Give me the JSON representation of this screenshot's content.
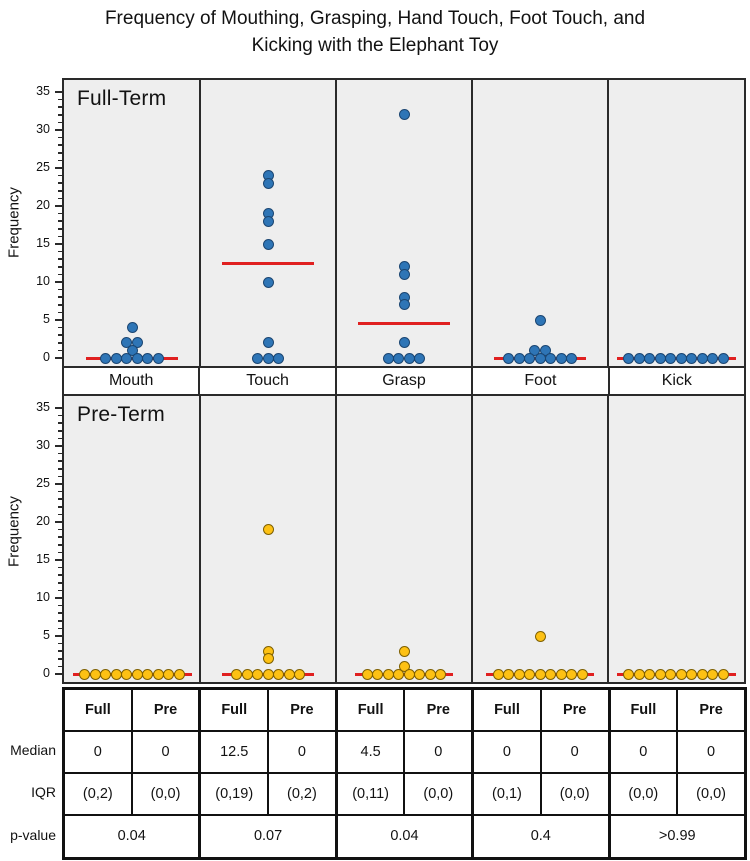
{
  "title": {
    "line1": "Frequency of Mouthing, Grasping, Hand Touch, Foot Touch, and",
    "line2": "Kicking with the Elephant Toy"
  },
  "y_axis": {
    "label": "Frequency",
    "min": 0,
    "max": 35,
    "major_ticks": [
      0,
      5,
      10,
      15,
      20,
      25,
      30,
      35
    ],
    "minor_tick_step": 1
  },
  "categories": [
    "Mouth",
    "Touch",
    "Grasp",
    "Foot",
    "Kick"
  ],
  "colors": {
    "full_term_dot": "#2e75b6",
    "full_term_dot_border": "#1b4672",
    "pre_term_dot": "#fdc114",
    "pre_term_dot_border": "#7f6000",
    "median_line": "#e02020",
    "panel_background": "#eeeeee"
  },
  "chart_data": [
    {
      "type": "scatter",
      "panel": "Full-Term",
      "ylabel": "Frequency",
      "ylim": [
        0,
        35
      ],
      "categories": [
        "Mouth",
        "Touch",
        "Grasp",
        "Foot",
        "Kick"
      ],
      "series": [
        {
          "category": "Mouth",
          "values": [
            4,
            2,
            2,
            1,
            0,
            0,
            0,
            0,
            0,
            0
          ],
          "median": 0
        },
        {
          "category": "Touch",
          "values": [
            24,
            23,
            19,
            18,
            15,
            10,
            2,
            0,
            0,
            0
          ],
          "median": 12.5
        },
        {
          "category": "Grasp",
          "values": [
            32,
            12,
            11,
            8,
            7,
            2,
            0,
            0,
            0,
            0
          ],
          "median": 4.5
        },
        {
          "category": "Foot",
          "values": [
            5,
            1,
            1,
            0,
            0,
            0,
            0,
            0,
            0,
            0
          ],
          "median": 0
        },
        {
          "category": "Kick",
          "values": [
            0,
            0,
            0,
            0,
            0,
            0,
            0,
            0,
            0,
            0
          ],
          "median": 0
        }
      ]
    },
    {
      "type": "scatter",
      "panel": "Pre-Term",
      "ylabel": "Frequency",
      "ylim": [
        0,
        35
      ],
      "categories": [
        "Mouth",
        "Touch",
        "Grasp",
        "Foot",
        "Kick"
      ],
      "series": [
        {
          "category": "Mouth",
          "values": [
            0,
            0,
            0,
            0,
            0,
            0,
            0,
            0,
            0,
            0
          ],
          "median": 0
        },
        {
          "category": "Touch",
          "values": [
            19,
            3,
            2,
            0,
            0,
            0,
            0,
            0,
            0,
            0
          ],
          "median": 0
        },
        {
          "category": "Grasp",
          "values": [
            3,
            1,
            0,
            0,
            0,
            0,
            0,
            0,
            0,
            0
          ],
          "median": 0
        },
        {
          "category": "Foot",
          "values": [
            5,
            0,
            0,
            0,
            0,
            0,
            0,
            0,
            0,
            0
          ],
          "median": 0
        },
        {
          "category": "Kick",
          "values": [
            0,
            0,
            0,
            0,
            0,
            0,
            0,
            0,
            0,
            0
          ],
          "median": 0
        }
      ]
    }
  ],
  "panels": [
    {
      "label": "Full-Term"
    },
    {
      "label": "Pre-Term"
    }
  ],
  "table": {
    "row_labels": [
      "Median",
      "IQR",
      "p-value"
    ],
    "column_headers": [
      "Full",
      "Pre",
      "Full",
      "Pre",
      "Full",
      "Pre",
      "Full",
      "Pre",
      "Full",
      "Pre"
    ],
    "median": [
      "0",
      "0",
      "12.5",
      "0",
      "4.5",
      "0",
      "0",
      "0",
      "0",
      "0"
    ],
    "iqr": [
      "(0,2)",
      "(0,0)",
      "(0,19)",
      "(0,2)",
      "(0,11)",
      "(0,0)",
      "(0,1)",
      "(0,0)",
      "(0,0)",
      "(0,0)"
    ],
    "p_values": [
      "0.04",
      "0.07",
      "0.04",
      "0.4",
      ">0.99"
    ]
  }
}
